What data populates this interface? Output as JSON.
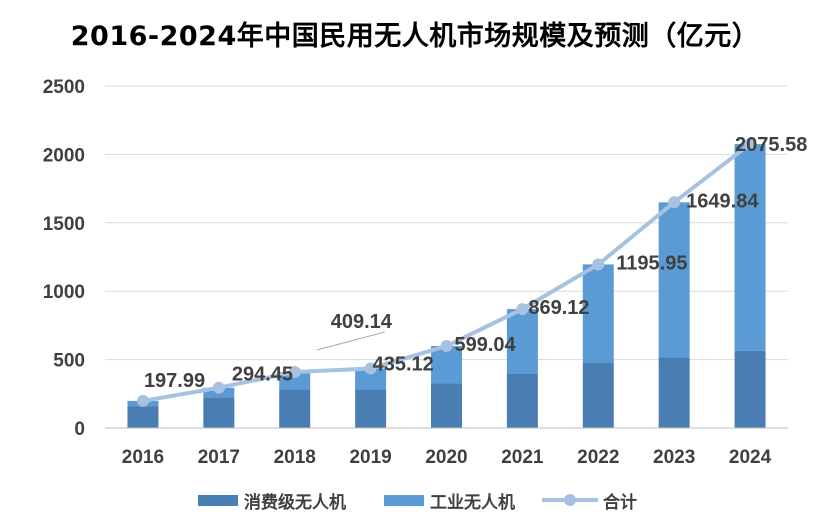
{
  "chart_data": {
    "type": "bar",
    "title": "2016-2024年中国民用无人机市场规模及预测（亿元）",
    "categories": [
      "2016",
      "2017",
      "2018",
      "2019",
      "2020",
      "2021",
      "2022",
      "2023",
      "2024"
    ],
    "series": [
      {
        "name": "消费级无人机",
        "type": "bar",
        "stacked": true,
        "color": "#4a7eb3",
        "values": [
          160,
          225,
          282,
          283,
          325,
          395,
          475,
          515,
          565
        ]
      },
      {
        "name": "工业无人机",
        "type": "bar",
        "stacked": true,
        "color": "#5b9bd5",
        "values": [
          37.99,
          69.45,
          127.14,
          152.12,
          274.04,
          474.12,
          720.95,
          1134.84,
          1510.58
        ]
      },
      {
        "name": "合计",
        "type": "line",
        "color": "#a7c1e1",
        "values": [
          197.99,
          294.45,
          409.14,
          435.12,
          599.04,
          869.12,
          1195.95,
          1649.84,
          2075.58
        ]
      }
    ],
    "data_labels": [
      "197.99",
      "294.45",
      "409.14",
      "435.12",
      "599.04",
      "869.12",
      "1195.95",
      "1649.84",
      "2075.58"
    ],
    "ylim": [
      0,
      2500
    ],
    "yticks": [
      "0",
      "500",
      "1000",
      "1500",
      "2000",
      "2500"
    ],
    "grid": true,
    "legend_position": "bottom"
  }
}
